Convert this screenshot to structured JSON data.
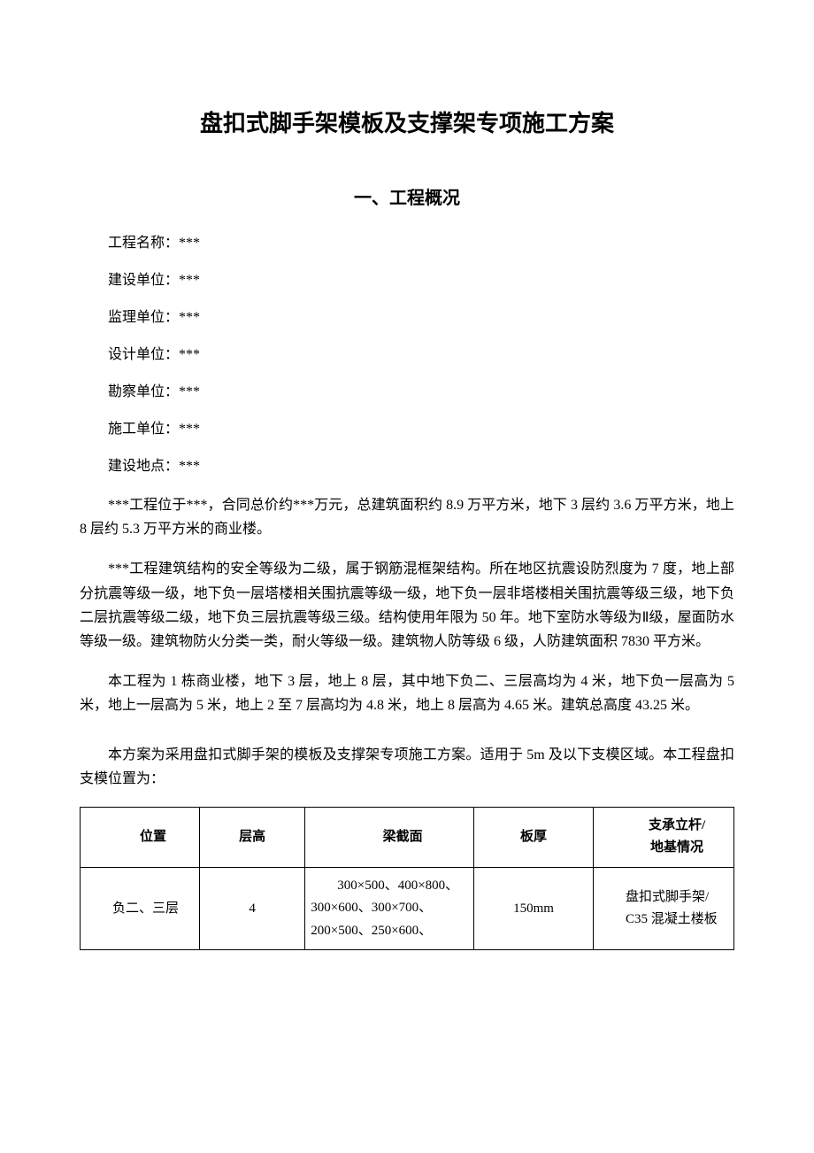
{
  "title": "盘扣式脚手架模板及支撑架专项施工方案",
  "section1_title": "一、工程概况",
  "fields": {
    "project_name_label": "工程名称：",
    "project_name_value": "***",
    "build_unit_label": "建设单位：",
    "build_unit_value": "***",
    "supervise_unit_label": "监理单位：",
    "supervise_unit_value": "***",
    "design_unit_label": "设计单位：",
    "design_unit_value": "***",
    "survey_unit_label": "勘察单位：",
    "survey_unit_value": "***",
    "construct_unit_label": "施工单位：",
    "construct_unit_value": "***",
    "location_label": "建设地点：",
    "location_value": "***"
  },
  "para1": "***工程位于***，合同总价约***万元，总建筑面积约 8.9 万平方米，地下 3 层约 3.6 万平方米，地上 8 层约 5.3 万平方米的商业楼。",
  "para2": "***工程建筑结构的安全等级为二级，属于钢筋混框架结构。所在地区抗震设防烈度为 7 度，地上部分抗震等级一级，地下负一层塔楼相关围抗震等级一级，地下负一层非塔楼相关围抗震等级三级，地下负二层抗震等级二级，地下负三层抗震等级三级。结构使用年限为 50 年。地下室防水等级为Ⅱ级，屋面防水等级一级。建筑物防火分类一类，耐火等级一级。建筑物人防等级 6 级，人防建筑面积 7830 平方米。",
  "para3": "本工程为 1 栋商业楼，地下 3 层，地上 8 层，其中地下负二、三层高均为 4 米，地下负一层高为 5 米，地上一层高为 5 米，地上 2 至 7 层高均为 4.8 米，地上 8 层高为 4.65 米。建筑总高度 43.25 米。",
  "para4": "本方案为采用盘扣式脚手架的模板及支撑架专项施工方案。适用于 5m 及以下支模区域。本工程盘扣支模位置为：",
  "table": {
    "header": {
      "pos": "位置",
      "height": "层高",
      "beam": "梁截面",
      "thick": "板厚",
      "support_l1": "支承立杆/",
      "support_l2": "地基情况"
    },
    "row1": {
      "pos": "负二、三层",
      "height": "4",
      "beam": "300×500、400×800、300×600、300×700、200×500、250×600、",
      "thick": "150mm",
      "support_l1": "盘扣式脚手架/",
      "support_l2": "C35 混凝土楼板"
    }
  }
}
